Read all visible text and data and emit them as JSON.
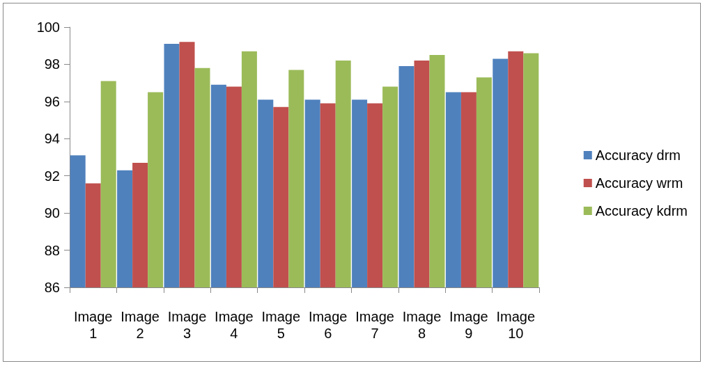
{
  "chart_data": {
    "type": "bar",
    "categories": [
      "Image 1",
      "Image 2",
      "Image 3",
      "Image 4",
      "Image 5",
      "Image 6",
      "Image 7",
      "Image 8",
      "Image 9",
      "Image 10"
    ],
    "series": [
      {
        "name": "Accuracy drm",
        "color": "#4f81bd",
        "values": [
          93.1,
          92.3,
          99.1,
          96.9,
          96.1,
          96.1,
          96.1,
          97.9,
          96.5,
          98.3
        ]
      },
      {
        "name": "Accuracy wrm",
        "color": "#c0504d",
        "values": [
          91.6,
          92.7,
          99.2,
          96.8,
          95.7,
          95.9,
          95.9,
          98.2,
          96.5,
          98.7
        ]
      },
      {
        "name": "Accuracy kdrm",
        "color": "#9bbb59",
        "values": [
          97.1,
          96.5,
          97.8,
          98.7,
          97.7,
          98.2,
          96.8,
          98.5,
          97.3,
          98.6
        ]
      }
    ],
    "ylim": [
      86,
      100
    ],
    "yticks": [
      86,
      88,
      90,
      92,
      94,
      96,
      98,
      100
    ],
    "grid": false,
    "legend": "right"
  }
}
